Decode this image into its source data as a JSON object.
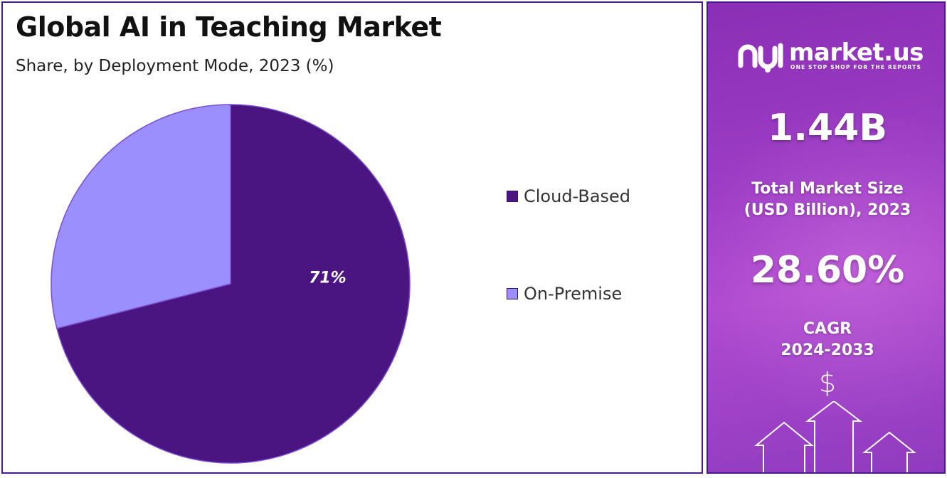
{
  "title": "Global AI in Teaching Market",
  "subtitle": "Share, by Deployment Mode, 2023 (%)",
  "chart_data": {
    "type": "pie",
    "title": "Global AI in Teaching Market",
    "subtitle": "Share, by Deployment Mode, 2023 (%)",
    "categories": [
      "Cloud-Based",
      "On-Premise"
    ],
    "values": [
      71,
      29
    ],
    "data_labels": [
      "71%",
      ""
    ],
    "colors": [
      "#4b1581",
      "#9b8ffd"
    ],
    "legend_position": "right"
  },
  "legend": [
    {
      "label": "Cloud-Based",
      "color": "#4b1581"
    },
    {
      "label": "On-Premise",
      "color": "#9b8ffd"
    }
  ],
  "sidebar": {
    "brand": "market.us",
    "tagline": "ONE STOP SHOP FOR THE REPORTS",
    "market_size_value": "1.44B",
    "market_size_label_line1": "Total Market Size",
    "market_size_label_line2": "(USD Billion), 2023",
    "cagr_value": "28.60%",
    "cagr_label_line1": "CAGR",
    "cagr_label_line2": "2024-2033",
    "currency_symbol": "$",
    "accent_color": "#9c3cc4"
  }
}
